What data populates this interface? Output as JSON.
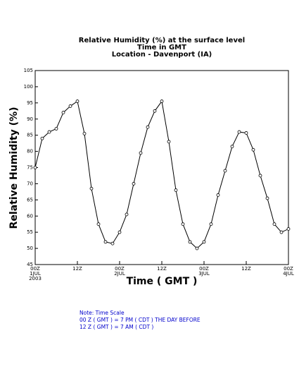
{
  "chart_data": {
    "type": "line",
    "title": [
      "Relative Humidity (%) at the surface level",
      "Time in GMT",
      "Location - Davenport (IA)"
    ],
    "xlabel": "Time ( GMT )",
    "ylabel": "Relative Humidity (%)",
    "x": [
      0,
      2,
      4,
      6,
      8,
      10,
      12,
      14,
      16,
      18,
      20,
      22,
      24,
      26,
      28,
      30,
      32,
      34,
      36,
      38,
      40,
      42,
      44,
      46,
      48,
      50,
      52,
      54,
      56,
      58,
      60,
      62,
      64,
      66,
      68,
      70,
      72
    ],
    "values": [
      75,
      84,
      86,
      87,
      92,
      94,
      95.5,
      85.5,
      68.5,
      57.5,
      52,
      51.5,
      55,
      60.5,
      70,
      79.5,
      87.5,
      92.5,
      95.5,
      83,
      68,
      57.5,
      52,
      50,
      52,
      57.5,
      66.5,
      74,
      81.5,
      86,
      85.7,
      80.5,
      72.5,
      65.5,
      57.5,
      55,
      56
    ],
    "color": "#000000",
    "xlim": [
      0,
      72
    ],
    "xticks": [
      {
        "value": 0,
        "label": "00Z"
      },
      {
        "value": 12,
        "label": "12Z"
      },
      {
        "value": 24,
        "label": "00Z"
      },
      {
        "value": 36,
        "label": "12Z"
      },
      {
        "value": 48,
        "label": "00Z"
      },
      {
        "value": 60,
        "label": "12Z"
      },
      {
        "value": 72,
        "label": "00Z"
      }
    ],
    "x_date_labels": [
      {
        "value": 0,
        "label": "1JUL"
      },
      {
        "value": 24,
        "label": "2JUL"
      },
      {
        "value": 48,
        "label": "3JUL"
      },
      {
        "value": 72,
        "label": "4JUL"
      }
    ],
    "x_year_label": {
      "value": 0,
      "label": "2003"
    },
    "ylim": [
      45,
      105
    ],
    "yticks": [
      45,
      50,
      55,
      60,
      65,
      70,
      75,
      80,
      85,
      90,
      95,
      100,
      105
    ],
    "notes": [
      "Note: Time Scale",
      "00 Z ( GMT ) = 7 PM ( CDT ) THE DAY BEFORE",
      "12 Z ( GMT ) = 7 AM ( CDT )"
    ],
    "notes_color": "#0000cc"
  }
}
